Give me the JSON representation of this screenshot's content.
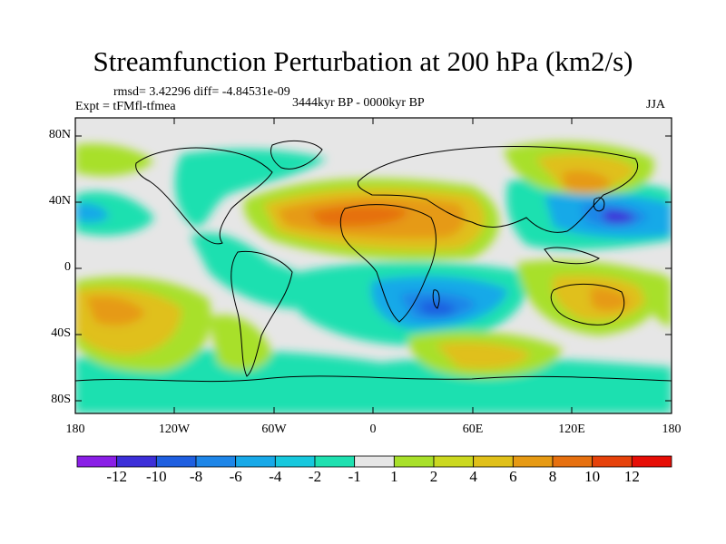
{
  "title": "Streamfunction Perturbation at 200 hPa (km2/s)",
  "stats_line": "rmsd= 3.42296 diff= -4.84531e-09",
  "experiment": "Expt = tFMfl-tfmea",
  "period": "3444kyr BP - 0000kyr BP",
  "season": "JJA",
  "lat_ticks": [
    "80N",
    "40N",
    "0",
    "40S",
    "80S"
  ],
  "lon_ticks": [
    "180",
    "120W",
    "60W",
    "0",
    "60E",
    "120E",
    "180"
  ],
  "colorbar": {
    "labels": [
      "-12",
      "-10",
      "-8",
      "-6",
      "-4",
      "-2",
      "-1",
      "1",
      "2",
      "4",
      "6",
      "8",
      "10",
      "12"
    ],
    "colors": [
      "#8a1fe6",
      "#3c2fd8",
      "#1f5fe0",
      "#1e86e8",
      "#18a9e8",
      "#17c8dd",
      "#1fe0b0",
      "#e6e6e6",
      "#a8e02a",
      "#cbd820",
      "#e0c01a",
      "#e69a14",
      "#e6700f",
      "#e6420b",
      "#e60e06"
    ]
  },
  "colors": {
    "land_outline": "#000000",
    "background": "#e6e6e6"
  }
}
